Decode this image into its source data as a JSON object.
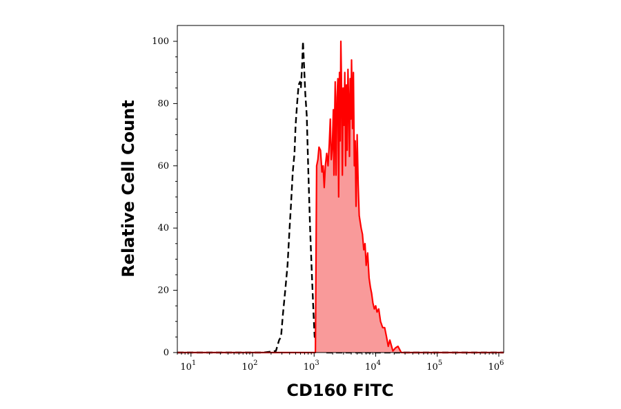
{
  "chart_data": {
    "type": "area",
    "title": "",
    "xlabel": "CD160 FITC",
    "ylabel": "Relative Cell Count",
    "x_scale": "log",
    "xlim": [
      6,
      1200000
    ],
    "ylim": [
      0,
      100
    ],
    "x_ticks": [
      {
        "base": "10",
        "exp": "1",
        "value": 10
      },
      {
        "base": "10",
        "exp": "2",
        "value": 100
      },
      {
        "base": "10",
        "exp": "3",
        "value": 1000
      },
      {
        "base": "10",
        "exp": "4",
        "value": 10000
      },
      {
        "base": "10",
        "exp": "5",
        "value": 100000
      },
      {
        "base": "10",
        "exp": "6",
        "value": 1000000
      }
    ],
    "y_ticks": [
      {
        "label": "0",
        "value": 0
      },
      {
        "label": "20",
        "value": 20
      },
      {
        "label": "40",
        "value": 40
      },
      {
        "label": "60",
        "value": 60
      },
      {
        "label": "80",
        "value": 80
      },
      {
        "label": "100",
        "value": 100
      }
    ],
    "grid": false,
    "legend": "none",
    "series": [
      {
        "style": "dashed",
        "color": "#000000",
        "fill": "none",
        "points": [
          [
            6,
            0
          ],
          [
            150,
            0
          ],
          [
            240,
            0.5
          ],
          [
            270,
            4
          ],
          [
            290,
            5
          ],
          [
            310,
            12
          ],
          [
            340,
            20
          ],
          [
            370,
            28
          ],
          [
            400,
            40
          ],
          [
            420,
            47
          ],
          [
            450,
            58
          ],
          [
            480,
            64
          ],
          [
            500,
            73
          ],
          [
            530,
            80
          ],
          [
            560,
            86
          ],
          [
            590,
            87
          ],
          [
            610,
            85
          ],
          [
            640,
            93
          ],
          [
            660,
            100
          ],
          [
            690,
            91
          ],
          [
            720,
            83
          ],
          [
            760,
            76
          ],
          [
            800,
            60
          ],
          [
            860,
            40
          ],
          [
            920,
            25
          ],
          [
            980,
            12
          ],
          [
            1020,
            5
          ],
          [
            1080,
            5
          ],
          [
            1130,
            10
          ],
          [
            1180,
            5
          ],
          [
            1260,
            1
          ],
          [
            1400,
            0
          ],
          [
            1200000,
            0
          ]
        ]
      },
      {
        "style": "solid",
        "color": "#ff0000",
        "fill": "#f99a9a",
        "points": [
          [
            6,
            0
          ],
          [
            1000,
            0
          ],
          [
            1050,
            0
          ],
          [
            1100,
            60
          ],
          [
            1150,
            62
          ],
          [
            1200,
            66
          ],
          [
            1270,
            65
          ],
          [
            1340,
            58
          ],
          [
            1400,
            60
          ],
          [
            1460,
            53
          ],
          [
            1520,
            60
          ],
          [
            1600,
            64
          ],
          [
            1680,
            60
          ],
          [
            1760,
            67
          ],
          [
            1830,
            75
          ],
          [
            1900,
            62
          ],
          [
            1980,
            66
          ],
          [
            2050,
            78
          ],
          [
            2100,
            57
          ],
          [
            2150,
            74
          ],
          [
            2200,
            87
          ],
          [
            2270,
            57
          ],
          [
            2350,
            82
          ],
          [
            2430,
            88
          ],
          [
            2500,
            50
          ],
          [
            2580,
            90
          ],
          [
            2650,
            68
          ],
          [
            2720,
            100
          ],
          [
            2800,
            84
          ],
          [
            2880,
            57
          ],
          [
            2960,
            85
          ],
          [
            3050,
            73
          ],
          [
            3150,
            90
          ],
          [
            3250,
            60
          ],
          [
            3350,
            86
          ],
          [
            3450,
            65
          ],
          [
            3550,
            91
          ],
          [
            3650,
            80
          ],
          [
            3750,
            63
          ],
          [
            3850,
            88
          ],
          [
            3950,
            75
          ],
          [
            4050,
            94
          ],
          [
            4200,
            72
          ],
          [
            4350,
            90
          ],
          [
            4500,
            60
          ],
          [
            4650,
            68
          ],
          [
            4800,
            47
          ],
          [
            5000,
            70
          ],
          [
            5200,
            54
          ],
          [
            5400,
            44
          ],
          [
            5600,
            42
          ],
          [
            5800,
            40
          ],
          [
            6100,
            38
          ],
          [
            6400,
            33
          ],
          [
            6700,
            35
          ],
          [
            7000,
            28
          ],
          [
            7400,
            32
          ],
          [
            7800,
            24
          ],
          [
            8200,
            21
          ],
          [
            8600,
            19
          ],
          [
            9000,
            16
          ],
          [
            9500,
            14
          ],
          [
            10000,
            15
          ],
          [
            10500,
            13
          ],
          [
            11200,
            14
          ],
          [
            12000,
            10
          ],
          [
            13000,
            8
          ],
          [
            14000,
            8
          ],
          [
            15000,
            5
          ],
          [
            16000,
            2
          ],
          [
            17000,
            4
          ],
          [
            19000,
            0.5
          ],
          [
            21000,
            1.5
          ],
          [
            23000,
            2
          ],
          [
            26000,
            0
          ],
          [
            1200000,
            0
          ]
        ]
      }
    ]
  }
}
